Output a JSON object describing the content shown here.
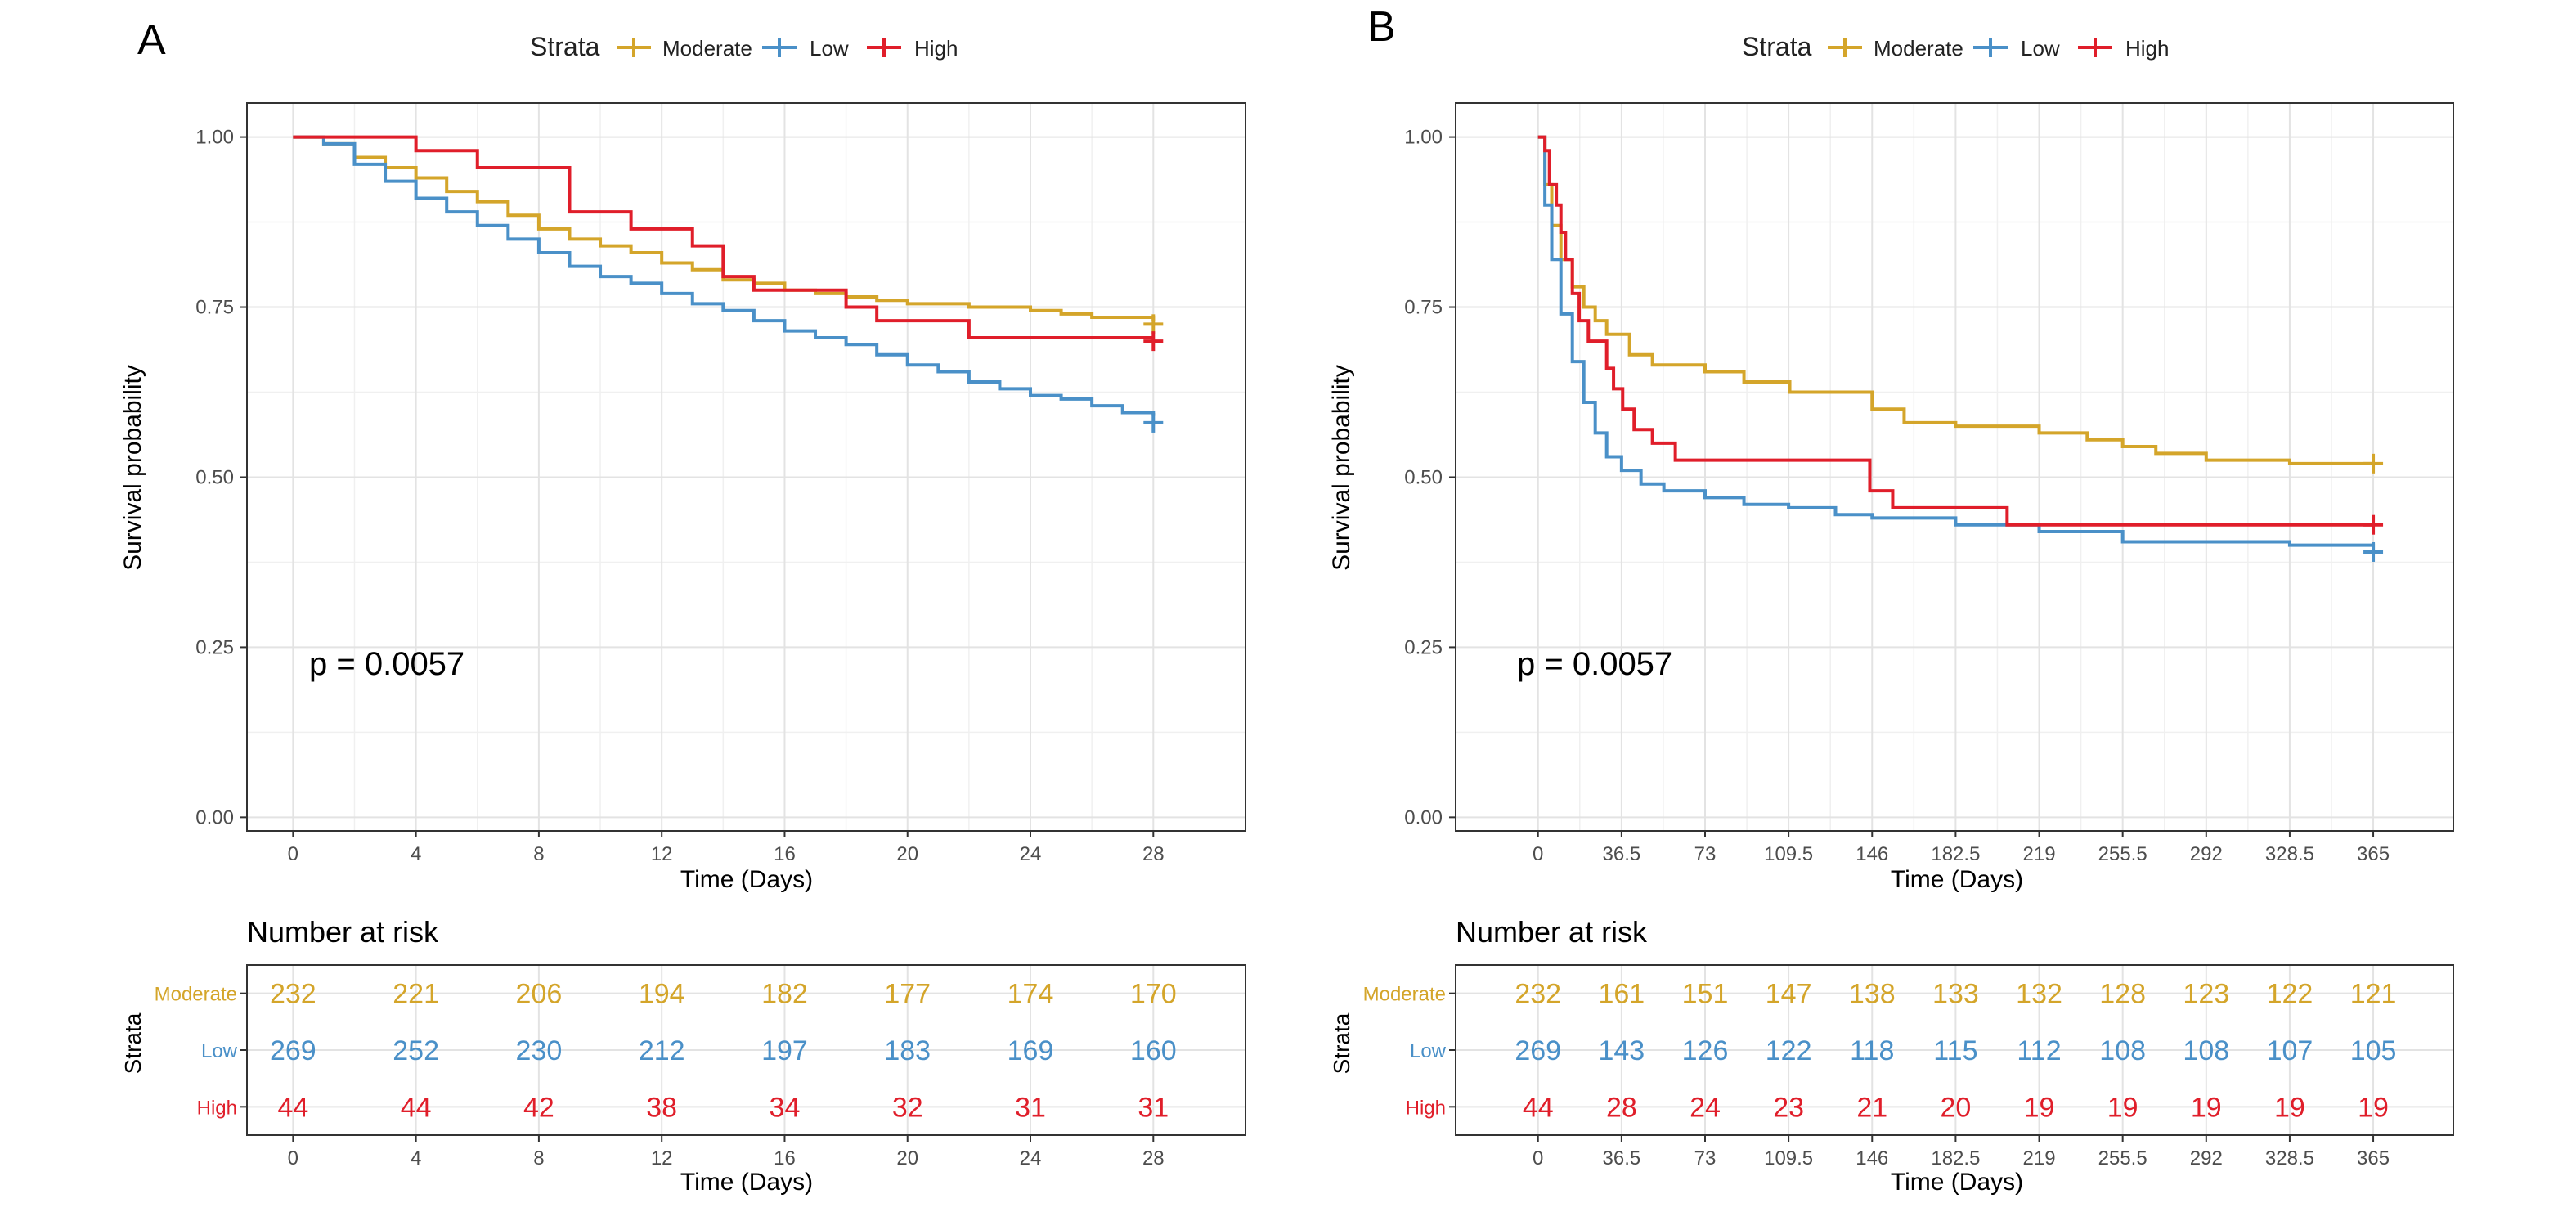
{
  "panels": [
    {
      "label": "A",
      "legend": {
        "title": "Strata",
        "entries": [
          "Moderate",
          "Low",
          "High"
        ]
      },
      "km": {
        "ylabel": "Survival probability",
        "xlabel": "Time (Days)",
        "yticks": [
          "0.00",
          "0.25",
          "0.50",
          "0.75",
          "1.00"
        ],
        "xticks": [
          "0",
          "4",
          "8",
          "12",
          "16",
          "20",
          "24",
          "28"
        ],
        "pvalue": "p = 0.0057"
      },
      "risk": {
        "title": "Number at risk",
        "ylabel": "Strata",
        "xlabel": "Time (Days)",
        "xticks": [
          "0",
          "4",
          "8",
          "12",
          "16",
          "20",
          "24",
          "28"
        ],
        "rows": [
          {
            "name": "Moderate",
            "values": [
              "232",
              "221",
              "206",
              "194",
              "182",
              "177",
              "174",
              "170"
            ]
          },
          {
            "name": "Low",
            "values": [
              "269",
              "252",
              "230",
              "212",
              "197",
              "183",
              "169",
              "160"
            ]
          },
          {
            "name": "High",
            "values": [
              "44",
              "44",
              "42",
              "38",
              "34",
              "32",
              "31",
              "31"
            ]
          }
        ]
      }
    },
    {
      "label": "B",
      "legend": {
        "title": "Strata",
        "entries": [
          "Moderate",
          "Low",
          "High"
        ]
      },
      "km": {
        "ylabel": "Survival probability",
        "xlabel": "Time (Days)",
        "yticks": [
          "0.00",
          "0.25",
          "0.50",
          "0.75",
          "1.00"
        ],
        "xticks": [
          "0",
          "36.5",
          "73",
          "109.5",
          "146",
          "182.5",
          "219",
          "255.5",
          "292",
          "328.5",
          "365"
        ],
        "pvalue": "p = 0.0057"
      },
      "risk": {
        "title": "Number at risk",
        "ylabel": "Strata",
        "xlabel": "Time (Days)",
        "xticks": [
          "0",
          "36.5",
          "73",
          "109.5",
          "146",
          "182.5",
          "219",
          "255.5",
          "292",
          "328.5",
          "365"
        ],
        "rows": [
          {
            "name": "Moderate",
            "values": [
              "232",
              "161",
              "151",
              "147",
              "138",
              "133",
              "132",
              "128",
              "123",
              "122",
              "121"
            ]
          },
          {
            "name": "Low",
            "values": [
              "269",
              "143",
              "126",
              "122",
              "118",
              "115",
              "112",
              "108",
              "108",
              "107",
              "105"
            ]
          },
          {
            "name": "High",
            "values": [
              "44",
              "28",
              "24",
              "23",
              "21",
              "20",
              "19",
              "19",
              "19",
              "19",
              "19"
            ]
          }
        ]
      }
    }
  ],
  "colors": {
    "Moderate": "#d4a52a",
    "Low": "#4a90c8",
    "High": "#e01e2a"
  },
  "chart_data": [
    {
      "type": "line",
      "subtype": "kaplan-meier",
      "title": "",
      "xlabel": "Time (Days)",
      "ylabel": "Survival probability",
      "xlim": [
        -1.5,
        31
      ],
      "ylim": [
        -0.02,
        1.05
      ],
      "grid": true,
      "legend": "top",
      "annotation": "p = 0.0057",
      "series": [
        {
          "name": "Moderate",
          "censor": [
            28,
            0.725
          ],
          "x": [
            0,
            1,
            2,
            3,
            4,
            5,
            6,
            7,
            8,
            9,
            10,
            11,
            12,
            13,
            14,
            15,
            16,
            17,
            18,
            19,
            20,
            21,
            22,
            23,
            24,
            25,
            26,
            27,
            28
          ],
          "y": [
            1.0,
            0.99,
            0.97,
            0.955,
            0.94,
            0.92,
            0.905,
            0.885,
            0.865,
            0.85,
            0.84,
            0.83,
            0.815,
            0.805,
            0.79,
            0.785,
            0.775,
            0.77,
            0.765,
            0.76,
            0.755,
            0.755,
            0.75,
            0.75,
            0.745,
            0.74,
            0.735,
            0.735,
            0.73
          ]
        },
        {
          "name": "Low",
          "censor": [
            28,
            0.58
          ],
          "x": [
            0,
            1,
            2,
            3,
            4,
            5,
            6,
            7,
            8,
            9,
            10,
            11,
            12,
            13,
            14,
            15,
            16,
            17,
            18,
            19,
            20,
            21,
            22,
            23,
            24,
            25,
            26,
            27,
            28
          ],
          "y": [
            1.0,
            0.99,
            0.96,
            0.935,
            0.91,
            0.89,
            0.87,
            0.85,
            0.83,
            0.81,
            0.795,
            0.785,
            0.77,
            0.755,
            0.745,
            0.73,
            0.715,
            0.705,
            0.695,
            0.68,
            0.665,
            0.655,
            0.64,
            0.63,
            0.62,
            0.615,
            0.605,
            0.595,
            0.59
          ]
        },
        {
          "name": "High",
          "censor": [
            28,
            0.7
          ],
          "x": [
            0,
            4,
            6,
            9,
            11,
            13,
            14,
            15,
            16,
            18,
            19,
            22,
            28
          ],
          "y": [
            1.0,
            0.98,
            0.955,
            0.89,
            0.865,
            0.84,
            0.795,
            0.775,
            0.775,
            0.75,
            0.73,
            0.705,
            0.705
          ]
        }
      ]
    },
    {
      "type": "line",
      "subtype": "kaplan-meier",
      "title": "",
      "xlabel": "Time (Days)",
      "ylabel": "Survival probability",
      "xlim": [
        -36,
        400
      ],
      "ylim": [
        -0.02,
        1.05
      ],
      "grid": true,
      "legend": "top",
      "annotation": "p = 0.0057",
      "series": [
        {
          "name": "Moderate",
          "censor": [
            365,
            0.52
          ],
          "x": [
            0,
            3,
            6,
            10,
            15,
            20,
            25,
            30,
            40,
            50,
            73,
            90,
            110,
            146,
            160,
            182.5,
            219,
            240,
            255.5,
            270,
            292,
            328.5,
            365
          ],
          "y": [
            1.0,
            0.93,
            0.87,
            0.82,
            0.78,
            0.75,
            0.73,
            0.71,
            0.68,
            0.665,
            0.655,
            0.64,
            0.625,
            0.6,
            0.58,
            0.575,
            0.565,
            0.555,
            0.545,
            0.535,
            0.525,
            0.52,
            0.52
          ]
        },
        {
          "name": "Low",
          "censor": [
            365,
            0.39
          ],
          "x": [
            0,
            3,
            6,
            10,
            15,
            20,
            25,
            30,
            36.5,
            45,
            55,
            73,
            90,
            109.5,
            130,
            146,
            182.5,
            219,
            255.5,
            292,
            328.5,
            365
          ],
          "y": [
            1.0,
            0.9,
            0.82,
            0.74,
            0.67,
            0.61,
            0.565,
            0.53,
            0.51,
            0.49,
            0.48,
            0.47,
            0.46,
            0.455,
            0.445,
            0.44,
            0.43,
            0.42,
            0.405,
            0.405,
            0.4,
            0.39
          ]
        },
        {
          "name": "High",
          "censor": [
            365,
            0.43
          ],
          "x": [
            0,
            3,
            5,
            8,
            10,
            12,
            15,
            18,
            22,
            30,
            33,
            37,
            42,
            50,
            60,
            90,
            145,
            155,
            205,
            365
          ],
          "y": [
            1.0,
            0.98,
            0.93,
            0.9,
            0.86,
            0.82,
            0.77,
            0.73,
            0.7,
            0.66,
            0.63,
            0.6,
            0.57,
            0.55,
            0.525,
            0.525,
            0.48,
            0.455,
            0.43,
            0.43
          ]
        }
      ]
    },
    {
      "type": "table",
      "title": "Number at risk",
      "xlabel": "Time (Days)",
      "ylabel": "Strata",
      "x": [
        0,
        4,
        8,
        12,
        16,
        20,
        24,
        28
      ],
      "series": [
        {
          "name": "Moderate",
          "values": [
            232,
            221,
            206,
            194,
            182,
            177,
            174,
            170
          ]
        },
        {
          "name": "Low",
          "values": [
            269,
            252,
            230,
            212,
            197,
            183,
            169,
            160
          ]
        },
        {
          "name": "High",
          "values": [
            44,
            44,
            42,
            38,
            34,
            32,
            31,
            31
          ]
        }
      ]
    },
    {
      "type": "table",
      "title": "Number at risk",
      "xlabel": "Time (Days)",
      "ylabel": "Strata",
      "x": [
        0,
        36.5,
        73,
        109.5,
        146,
        182.5,
        219,
        255.5,
        292,
        328.5,
        365
      ],
      "series": [
        {
          "name": "Moderate",
          "values": [
            232,
            161,
            151,
            147,
            138,
            133,
            132,
            128,
            123,
            122,
            121
          ]
        },
        {
          "name": "Low",
          "values": [
            269,
            143,
            126,
            122,
            118,
            115,
            112,
            108,
            108,
            107,
            105
          ]
        },
        {
          "name": "High",
          "values": [
            44,
            28,
            24,
            23,
            21,
            20,
            19,
            19,
            19,
            19,
            19
          ]
        }
      ]
    }
  ]
}
